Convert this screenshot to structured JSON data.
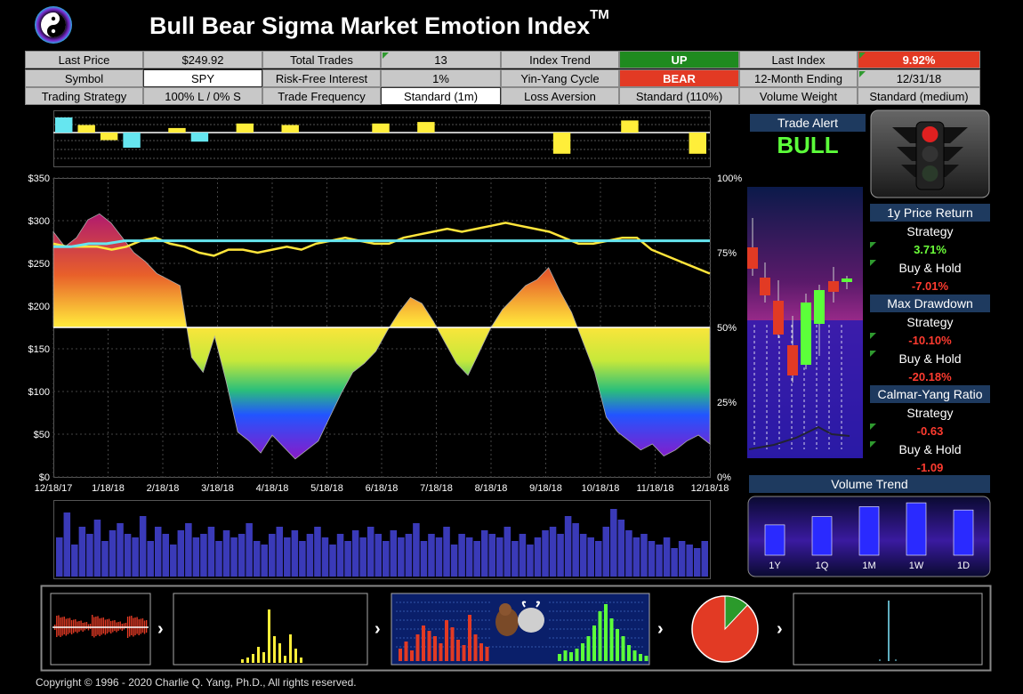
{
  "title": {
    "text": "Bull Bear Sigma Market Emotion Index",
    "mark": "TM"
  },
  "header": {
    "rows": [
      [
        {
          "label": "Last Price",
          "value": "$249.92"
        },
        {
          "label": "Total Trades",
          "value": "13"
        },
        {
          "label": "Index Trend",
          "value": "UP"
        },
        {
          "label": "Last Index",
          "value": "9.92%"
        }
      ],
      [
        {
          "label": "Symbol",
          "value": "SPY"
        },
        {
          "label": "Risk-Free Interest",
          "value": "1%"
        },
        {
          "label": "Yin-Yang Cycle",
          "value": "BEAR"
        },
        {
          "label": "12-Month Ending",
          "value": "12/31/18"
        }
      ],
      [
        {
          "label": "Trading Strategy",
          "value": "100% L / 0% S"
        },
        {
          "label": "Trade Frequency",
          "value": "Standard (1m)"
        },
        {
          "label": "Loss Aversion",
          "value": "Standard (110%)"
        },
        {
          "label": "Volume Weight",
          "value": "Standard (medium)"
        }
      ]
    ],
    "colors": {
      "up": "#1f8a1f",
      "bear": "#e23a24",
      "last_index": "#e23a24"
    }
  },
  "trade_alert": {
    "title": "Trade Alert",
    "signal": "BULL"
  },
  "sidebar": {
    "price_return": {
      "title": "1y Price Return",
      "strategy_label": "Strategy",
      "strategy_value": "3.71%",
      "bh_label": "Buy & Hold",
      "bh_value": "-7.01%"
    },
    "max_drawdown": {
      "title": "Max Drawdown",
      "strategy_label": "Strategy",
      "strategy_value": "-10.10%",
      "bh_label": "Buy & Hold",
      "bh_value": "-20.18%"
    },
    "calmar": {
      "title": "Calmar-Yang Ratio",
      "strategy_label": "Strategy",
      "strategy_value": "-0.63",
      "bh_label": "Buy & Hold",
      "bh_value": "-1.09"
    }
  },
  "volume_trend": {
    "title": "Volume Trend",
    "categories": [
      "1Y",
      "1Q",
      "1M",
      "1W",
      "1D"
    ],
    "values": [
      0.55,
      0.7,
      0.88,
      0.95,
      0.82
    ]
  },
  "copyright": "Copyright © 1996 - 2020 Charlie Q. Yang, Ph.D., All rights reserved.",
  "chart_data": [
    {
      "type": "area",
      "title": "",
      "x_ticks": [
        "12/18/17",
        "1/18/18",
        "2/18/18",
        "3/18/18",
        "4/18/18",
        "5/18/18",
        "6/18/18",
        "7/18/18",
        "8/18/18",
        "9/18/18",
        "10/18/18",
        "11/18/18",
        "12/18/18"
      ],
      "y_left_ticks": [
        "$350",
        "$300",
        "$250",
        "$200",
        "$150",
        "$100",
        "$50",
        "$0"
      ],
      "y_right_ticks": [
        "100%",
        "75%",
        "50%",
        "25%",
        "0%"
      ],
      "ylim_left": [
        0,
        350
      ],
      "ylim_right": [
        0,
        100
      ],
      "series": [
        {
          "values": [
            82,
            77,
            80,
            86,
            88,
            85,
            80,
            75,
            72,
            68,
            66,
            64,
            40,
            35,
            47,
            32,
            15,
            12,
            8,
            14,
            10,
            6,
            9,
            12,
            20,
            28,
            35,
            38,
            42,
            49,
            55,
            60,
            58,
            52,
            45,
            38,
            34,
            42,
            50,
            56,
            60,
            64,
            66,
            70,
            62,
            55,
            45,
            35,
            20,
            15,
            12,
            9,
            11,
            7,
            9,
            12,
            14,
            11
          ]
        },
        {
          "values": [
            78,
            77,
            77,
            77,
            76,
            77,
            79,
            80,
            78,
            77,
            75,
            74,
            76,
            76,
            75,
            76,
            77,
            76,
            78,
            79,
            80,
            79,
            78,
            78,
            80,
            81,
            82,
            83,
            82,
            83,
            84,
            85,
            84,
            83,
            82,
            80,
            78,
            78,
            79,
            80,
            80,
            76,
            74,
            72,
            70,
            68
          ]
        },
        {
          "values": [
            77,
            77,
            78,
            78,
            79,
            79,
            79,
            79,
            79,
            79,
            79,
            79,
            79,
            79,
            79,
            79,
            79,
            79,
            79,
            79,
            79,
            79,
            79,
            79,
            79,
            79,
            79,
            79,
            79,
            79,
            79,
            79,
            79,
            79,
            79,
            79,
            79,
            79
          ]
        }
      ]
    },
    {
      "type": "bar",
      "title": "",
      "values": [
        0.55,
        0.9,
        0.45,
        0.7,
        0.6,
        0.8,
        0.5,
        0.65,
        0.75,
        0.6,
        0.55,
        0.85,
        0.5,
        0.7,
        0.6,
        0.45,
        0.65,
        0.75,
        0.55,
        0.6,
        0.7,
        0.5,
        0.65,
        0.55,
        0.6,
        0.75,
        0.5,
        0.45,
        0.6,
        0.7,
        0.55,
        0.65,
        0.5,
        0.6,
        0.7,
        0.55,
        0.45,
        0.6,
        0.5,
        0.65,
        0.55,
        0.7,
        0.6,
        0.5,
        0.65,
        0.55,
        0.6,
        0.75,
        0.5,
        0.6,
        0.55,
        0.7,
        0.45,
        0.6,
        0.55,
        0.5,
        0.65,
        0.6,
        0.55,
        0.7,
        0.5,
        0.6,
        0.45,
        0.55,
        0.65,
        0.7,
        0.6,
        0.85,
        0.75,
        0.6,
        0.55,
        0.5,
        0.7,
        0.95,
        0.8,
        0.65,
        0.55,
        0.6,
        0.5,
        0.45,
        0.55,
        0.4,
        0.5,
        0.45,
        0.4,
        0.5
      ]
    },
    {
      "type": "bar",
      "title": "",
      "values": [
        1,
        0.5,
        -0.5,
        -1,
        0,
        0.3,
        -0.6,
        0,
        0.6,
        0,
        0.5,
        0,
        0,
        0,
        0.6,
        0,
        0.7,
        0,
        0,
        0,
        0,
        0,
        -1.4,
        0,
        0,
        0.8,
        0,
        0,
        -1.4
      ]
    },
    {
      "type": "pie",
      "title": "",
      "values": [
        88,
        12
      ],
      "colors": [
        "#e23a24",
        "#2b9a2b"
      ]
    }
  ]
}
